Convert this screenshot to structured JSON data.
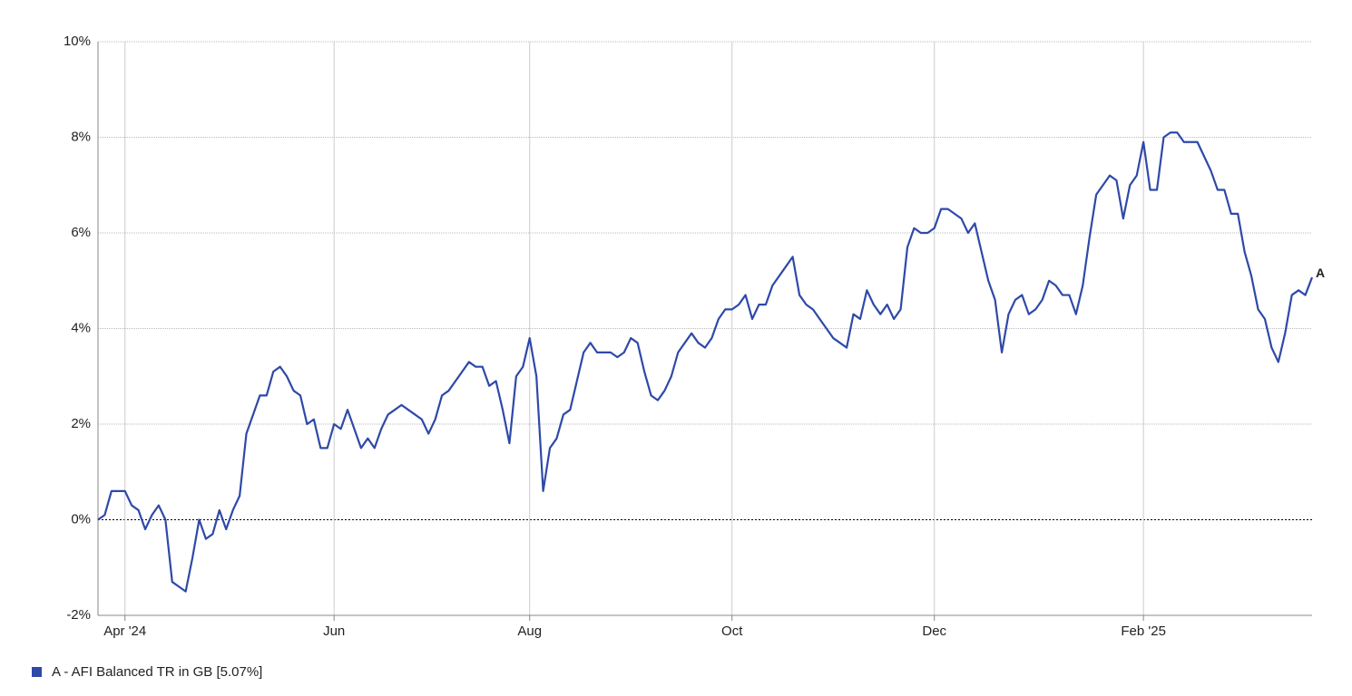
{
  "chart_data": {
    "type": "line",
    "categories": [
      null,
      null,
      null,
      null,
      "Apr '24",
      null,
      null,
      null,
      null,
      null,
      null,
      null,
      null,
      null,
      null,
      null,
      null,
      null,
      null,
      null,
      null,
      null,
      null,
      null,
      null,
      null,
      null,
      null,
      null,
      null,
      null,
      null,
      null,
      null,
      null,
      "Jun",
      null,
      null,
      null,
      null,
      null,
      null,
      null,
      null,
      null,
      null,
      null,
      null,
      null,
      null,
      null,
      null,
      null,
      null,
      null,
      null,
      null,
      null,
      null,
      null,
      null,
      null,
      null,
      null,
      "Aug",
      null,
      null,
      null,
      null,
      null,
      null,
      null,
      null,
      null,
      null,
      null,
      null,
      null,
      null,
      null,
      null,
      null,
      null,
      null,
      null,
      null,
      null,
      null,
      null,
      null,
      null,
      null,
      null,
      null,
      "Oct",
      null,
      null,
      null,
      null,
      null,
      null,
      null,
      null,
      null,
      null,
      null,
      null,
      null,
      null,
      null,
      null,
      null,
      null,
      null,
      null,
      null,
      null,
      null,
      null,
      null,
      null,
      null,
      null,
      null,
      "Dec",
      null,
      null,
      null,
      null,
      null,
      null,
      null,
      null,
      null,
      null,
      null,
      null,
      null,
      null,
      null,
      null,
      null,
      null,
      null,
      null,
      null,
      null,
      null,
      null,
      null,
      null,
      null,
      null,
      null,
      null,
      "Feb '25",
      null,
      null,
      null,
      null,
      null,
      null,
      null,
      null,
      null,
      null,
      null,
      null,
      null,
      null,
      null,
      null,
      null,
      null,
      null,
      null,
      null,
      null,
      null,
      null,
      null
    ],
    "series": [
      {
        "name": "A - AFI Balanced TR in GB [5.07%]",
        "end_label": "A",
        "color": "#2e49a8",
        "values": [
          0,
          0.1,
          0.6,
          0.6,
          0.6,
          0.3,
          0.2,
          -0.2,
          0.1,
          0.3,
          0,
          -1.3,
          -1.4,
          -1.5,
          -0.8,
          0,
          -0.4,
          -0.3,
          0.2,
          -0.2,
          0.2,
          0.5,
          1.8,
          2.2,
          2.6,
          2.6,
          3.1,
          3.2,
          3.0,
          2.7,
          2.6,
          2.0,
          2.1,
          1.5,
          1.5,
          2.0,
          1.9,
          2.3,
          1.9,
          1.5,
          1.7,
          1.5,
          1.9,
          2.2,
          2.3,
          2.4,
          2.3,
          2.2,
          2.1,
          1.8,
          2.1,
          2.6,
          2.7,
          2.9,
          3.1,
          3.3,
          3.2,
          3.2,
          2.8,
          2.9,
          2.3,
          1.6,
          3.0,
          3.2,
          3.8,
          3.0,
          0.6,
          1.5,
          1.7,
          2.2,
          2.3,
          2.9,
          3.5,
          3.7,
          3.5,
          3.5,
          3.5,
          3.4,
          3.5,
          3.8,
          3.7,
          3.1,
          2.6,
          2.5,
          2.7,
          3.0,
          3.5,
          3.7,
          3.9,
          3.7,
          3.6,
          3.8,
          4.2,
          4.4,
          4.4,
          4.5,
          4.7,
          4.2,
          4.5,
          4.5,
          4.9,
          5.1,
          5.3,
          5.5,
          4.7,
          4.5,
          4.4,
          4.2,
          4.0,
          3.8,
          3.7,
          3.6,
          4.3,
          4.2,
          4.8,
          4.5,
          4.3,
          4.5,
          4.2,
          4.4,
          5.7,
          6.1,
          6.0,
          6.0,
          6.1,
          6.5,
          6.5,
          6.4,
          6.3,
          6.0,
          6.2,
          5.6,
          5.0,
          4.6,
          3.5,
          4.3,
          4.6,
          4.7,
          4.3,
          4.4,
          4.6,
          5.0,
          4.9,
          4.7,
          4.7,
          4.3,
          4.9,
          5.9,
          6.8,
          7.0,
          7.2,
          7.1,
          6.3,
          7.0,
          7.2,
          7.9,
          6.9,
          6.9,
          8.0,
          8.1,
          8.1,
          7.9,
          7.9,
          7.9,
          7.6,
          7.3,
          6.9,
          6.9,
          6.4,
          6.4,
          5.6,
          5.1,
          4.4,
          4.2,
          3.6,
          3.3,
          3.9,
          4.7,
          4.8,
          4.7,
          5.07
        ]
      }
    ],
    "ylim": [
      -2,
      10
    ],
    "yticks": [
      {
        "value": -2,
        "label": "-2%"
      },
      {
        "value": 0,
        "label": "0%"
      },
      {
        "value": 2,
        "label": "2%"
      },
      {
        "value": 4,
        "label": "4%"
      },
      {
        "value": 6,
        "label": "6%"
      },
      {
        "value": 8,
        "label": "8%"
      },
      {
        "value": 10,
        "label": "10%"
      }
    ],
    "grid": true
  }
}
